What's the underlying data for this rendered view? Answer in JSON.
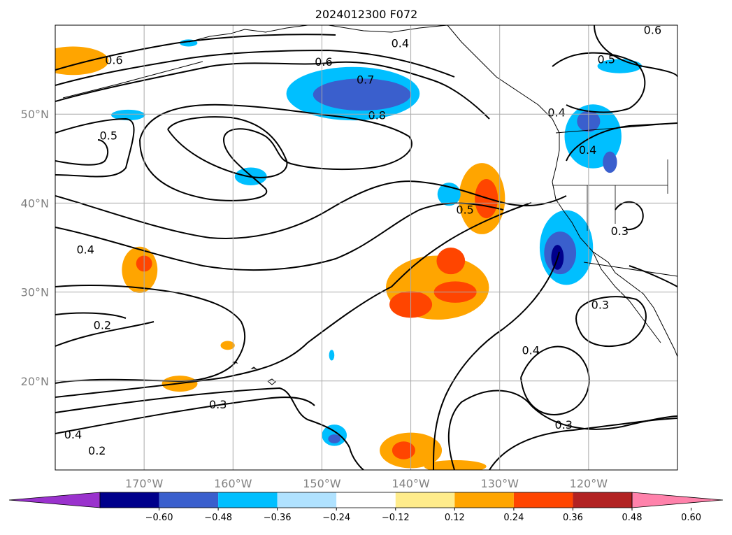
{
  "chart_data": {
    "type": "contour-map",
    "title": "2024012300 F072",
    "map": {
      "lon_range": [
        -180,
        -110
      ],
      "lat_range": [
        10,
        60
      ],
      "grid": true,
      "lon_ticks": [
        -170,
        -160,
        -150,
        -140,
        -130,
        -120
      ],
      "lat_ticks": [
        20,
        30,
        40,
        50
      ],
      "lon_tick_labels": [
        "170°W",
        "160°W",
        "150°W",
        "140°W",
        "130°W",
        "120°W"
      ],
      "lat_tick_labels": [
        "20°N",
        "30°N",
        "40°N",
        "50°N"
      ]
    },
    "colorbar": {
      "levels": [
        -0.6,
        -0.48,
        -0.36,
        -0.24,
        -0.12,
        0.12,
        0.24,
        0.36,
        0.48,
        0.6
      ],
      "tick_labels": [
        "−0.60",
        "−0.48",
        "−0.36",
        "−0.24",
        "−0.12",
        "0.12",
        "0.24",
        "0.36",
        "0.48",
        "0.60"
      ],
      "colors": [
        "#9a32cd",
        "#00008b",
        "#3a5fcd",
        "#00bfff",
        "#b0e2ff",
        "#ffffff",
        "#ffec8b",
        "#ffa500",
        "#ff4500",
        "#b22222",
        "#ff82ab"
      ],
      "extend": "both"
    },
    "contour_labels": [
      {
        "text": "0.6",
        "lon": -149.8,
        "lat": 55.9
      },
      {
        "text": "0.7",
        "lon": -145.1,
        "lat": 53.9
      },
      {
        "text": "0.8",
        "lon": -143.8,
        "lat": 49.9
      },
      {
        "text": "0.4",
        "lon": -141.2,
        "lat": 58.0
      },
      {
        "text": "0.6",
        "lon": -173.4,
        "lat": 56.1
      },
      {
        "text": "0.5",
        "lon": -174.0,
        "lat": 47.6
      },
      {
        "text": "0.4",
        "lon": -176.6,
        "lat": 34.8
      },
      {
        "text": "0.2",
        "lon": -174.7,
        "lat": 26.3
      },
      {
        "text": "0.3",
        "lon": -161.7,
        "lat": 17.4
      },
      {
        "text": "0.4",
        "lon": -178.0,
        "lat": 14.0
      },
      {
        "text": "0.2",
        "lon": -175.3,
        "lat": 12.2
      },
      {
        "text": "0.5",
        "lon": -133.9,
        "lat": 39.3
      },
      {
        "text": "0.4",
        "lon": -123.6,
        "lat": 50.2
      },
      {
        "text": "0.5",
        "lon": -118.0,
        "lat": 56.2
      },
      {
        "text": "0.6",
        "lon": -112.8,
        "lat": 59.5
      },
      {
        "text": "0.4",
        "lon": -120.1,
        "lat": 46.0
      },
      {
        "text": "0.3",
        "lon": -116.5,
        "lat": 36.9
      },
      {
        "text": "0.3",
        "lon": -118.7,
        "lat": 28.6
      },
      {
        "text": "0.4",
        "lon": -126.5,
        "lat": 23.5
      },
      {
        "text": "0.3",
        "lon": -122.8,
        "lat": 15.1
      }
    ],
    "shaded_regions": [
      {
        "level": 0.24,
        "lon": -178,
        "lat": 56.0,
        "rx": 4.0,
        "ry": 1.6
      },
      {
        "level": 0.24,
        "lon": -132,
        "lat": 40.5,
        "rx": 2.6,
        "ry": 4.0
      },
      {
        "level": 0.36,
        "lon": -131.5,
        "lat": 40.5,
        "rx": 1.3,
        "ry": 2.2
      },
      {
        "level": 0.24,
        "lon": -137,
        "lat": 30.5,
        "rx": 5.8,
        "ry": 3.6
      },
      {
        "level": 0.36,
        "lon": -140,
        "lat": 28.6,
        "rx": 2.4,
        "ry": 1.5
      },
      {
        "level": 0.36,
        "lon": -135.5,
        "lat": 33.5,
        "rx": 1.6,
        "ry": 1.5
      },
      {
        "level": 0.36,
        "lon": -135,
        "lat": 30.0,
        "rx": 2.4,
        "ry": 1.2
      },
      {
        "level": 0.24,
        "lon": -170.5,
        "lat": 32.5,
        "rx": 2.0,
        "ry": 2.6
      },
      {
        "level": 0.36,
        "lon": -170,
        "lat": 33.2,
        "rx": 0.9,
        "ry": 0.9
      },
      {
        "level": 0.24,
        "lon": -166,
        "lat": 19.7,
        "rx": 2.0,
        "ry": 0.9
      },
      {
        "level": 0.24,
        "lon": -160.6,
        "lat": 24.0,
        "rx": 0.8,
        "ry": 0.5
      },
      {
        "level": 0.24,
        "lon": -140,
        "lat": 12.2,
        "rx": 3.5,
        "ry": 2.0
      },
      {
        "level": 0.36,
        "lon": -140.8,
        "lat": 12.2,
        "rx": 1.3,
        "ry": 1.0
      },
      {
        "level": 0.24,
        "lon": -135,
        "lat": 10.4,
        "rx": 3.5,
        "ry": 0.7
      },
      {
        "level": -0.24,
        "lon": -146.5,
        "lat": 52.3,
        "rx": 7.5,
        "ry": 3.0
      },
      {
        "level": -0.36,
        "lon": -145.5,
        "lat": 52.2,
        "rx": 5.5,
        "ry": 1.8
      },
      {
        "level": -0.24,
        "lon": -122.5,
        "lat": 35.0,
        "rx": 3.0,
        "ry": 4.2
      },
      {
        "level": -0.36,
        "lon": -123.2,
        "lat": 34.4,
        "rx": 1.8,
        "ry": 2.4
      },
      {
        "level": -0.48,
        "lon": -123.5,
        "lat": 33.9,
        "rx": 0.7,
        "ry": 1.4
      },
      {
        "level": -0.24,
        "lon": -119.5,
        "lat": 47.5,
        "rx": 3.2,
        "ry": 3.6
      },
      {
        "level": -0.36,
        "lon": -120.0,
        "lat": 49.2,
        "rx": 1.3,
        "ry": 1.2
      },
      {
        "level": -0.36,
        "lon": -117.6,
        "lat": 44.6,
        "rx": 0.8,
        "ry": 1.2
      },
      {
        "level": -0.24,
        "lon": -158,
        "lat": 43.0,
        "rx": 1.8,
        "ry": 1.0
      },
      {
        "level": -0.24,
        "lon": -171.8,
        "lat": 49.9,
        "rx": 1.9,
        "ry": 0.6
      },
      {
        "level": -0.24,
        "lon": -135.7,
        "lat": 41.0,
        "rx": 1.3,
        "ry": 1.3
      },
      {
        "level": -0.24,
        "lon": -116.5,
        "lat": 55.4,
        "rx": 2.5,
        "ry": 0.8
      },
      {
        "level": -0.24,
        "lon": -165,
        "lat": 58.0,
        "rx": 1.0,
        "ry": 0.4
      },
      {
        "level": -0.24,
        "lon": -148.6,
        "lat": 13.9,
        "rx": 1.4,
        "ry": 1.2
      },
      {
        "level": -0.36,
        "lon": -148.6,
        "lat": 13.5,
        "rx": 0.7,
        "ry": 0.5
      },
      {
        "level": -0.24,
        "lon": -148.9,
        "lat": 22.9,
        "rx": 0.3,
        "ry": 0.6
      }
    ]
  }
}
